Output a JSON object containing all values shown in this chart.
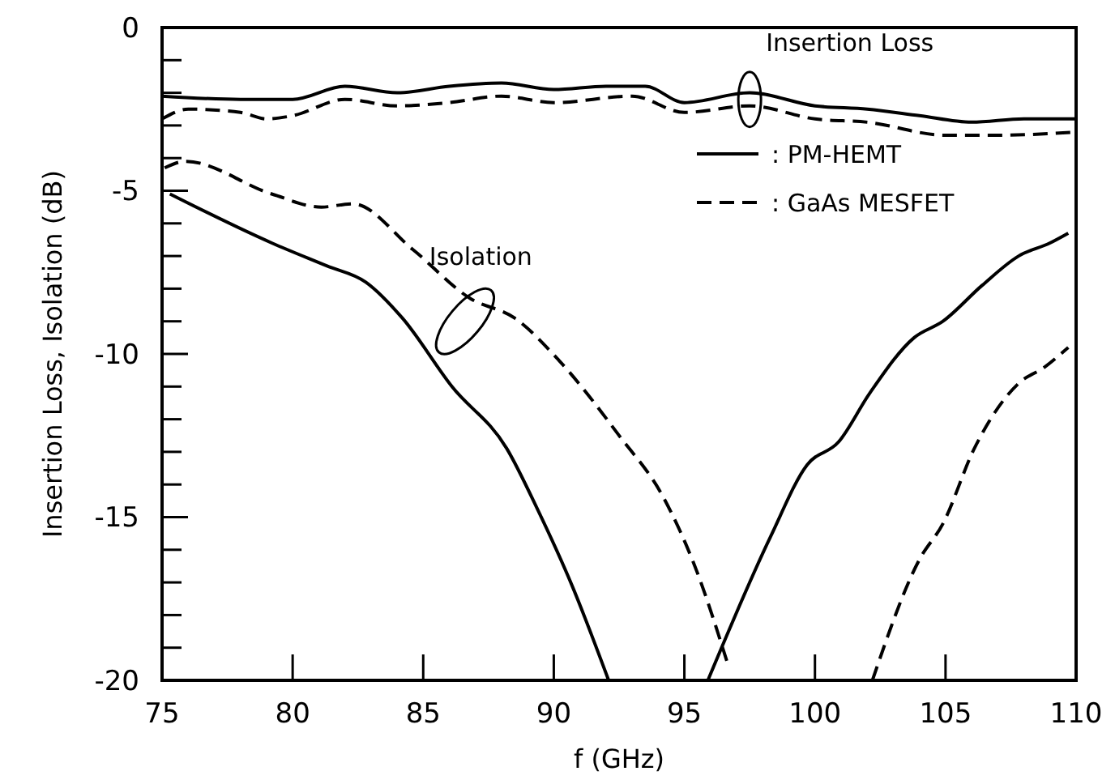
{
  "chart_data": {
    "type": "line",
    "xlabel": "f (GHz)",
    "ylabel": "Insertion Loss, Isolation (dB)",
    "xlim": [
      75,
      110
    ],
    "ylim": [
      -20,
      0
    ],
    "xticks": [
      75,
      80,
      85,
      90,
      95,
      100,
      105,
      110
    ],
    "yticks": [
      -20,
      {
        "value": -19,
        "label": null
      },
      {
        "value": -18,
        "label": null
      },
      {
        "value": -17,
        "label": null
      },
      {
        "value": -16,
        "label": null
      },
      -15,
      {
        "value": -14,
        "label": null
      },
      {
        "value": -13,
        "label": null
      },
      {
        "value": -12,
        "label": null
      },
      {
        "value": -11,
        "label": null
      },
      -10,
      {
        "value": -9,
        "label": null
      },
      {
        "value": -8,
        "label": null
      },
      {
        "value": -7,
        "label": null
      },
      {
        "value": -6,
        "label": null
      },
      -5,
      {
        "value": -4,
        "label": null
      },
      {
        "value": -3,
        "label": null
      },
      {
        "value": -2,
        "label": null
      },
      {
        "value": -1,
        "label": null
      },
      0
    ],
    "legend": "top right",
    "series": [
      {
        "name": ": PM-HEMT",
        "color": "#000000",
        "line_style": "solid",
        "x": [
          75,
          78,
          80,
          82,
          84,
          86,
          88,
          90,
          92,
          93.5,
          95,
          97.5,
          100,
          102,
          104,
          106,
          108,
          110
        ],
        "values": [
          -2.1,
          -2.2,
          -2.2,
          -1.8,
          -2.0,
          -1.8,
          -1.7,
          -1.9,
          -1.8,
          -1.8,
          -2.3,
          -2.0,
          -2.4,
          -2.5,
          -2.7,
          -2.9,
          -2.8,
          -2.8
        ]
      },
      {
        "name": ": GaAs MESFET",
        "color": "#000000",
        "line_style": "dashed",
        "x": [
          75,
          76,
          78,
          79,
          80,
          82,
          84,
          86,
          88,
          90,
          93,
          95,
          97.5,
          100,
          102,
          105,
          107,
          110
        ],
        "values": [
          -2.8,
          -2.5,
          -2.6,
          -2.8,
          -2.7,
          -2.2,
          -2.4,
          -2.3,
          -2.1,
          -2.3,
          -2.1,
          -2.6,
          -2.4,
          -2.8,
          -2.9,
          -3.3,
          -3.3,
          -3.2
        ]
      },
      {
        "color": "#000000",
        "line_style": "solid",
        "x": [
          75.3,
          79.2,
          81.3,
          82.8,
          84.2,
          86.1,
          88.2,
          89.4,
          90.7,
          92.1,
          94,
          95.9,
          98.3,
          99.7,
          100.9,
          102.1,
          103.8,
          104.9,
          106.4,
          107.8,
          109,
          109.7
        ],
        "values": [
          -5.1,
          -6.6,
          -7.3,
          -7.8,
          -8.9,
          -11.0,
          -12.9,
          -14.8,
          -17.1,
          -20,
          null,
          -20,
          -15.6,
          -13.4,
          -12.7,
          -11.2,
          -9.5,
          -9.0,
          -7.9,
          -7.0,
          -6.6,
          -6.3
        ]
      },
      {
        "color": "#000000",
        "line_style": "dashed",
        "x": [
          75.1,
          75.9,
          79.2,
          81.1,
          82.3,
          84.6,
          86.8,
          88.5,
          90.2,
          92.5,
          94.2,
          95.4,
          96.7,
          100,
          102.2,
          104,
          104.9,
          106.1,
          107.8,
          108.8,
          109.7
        ],
        "values": [
          -4.3,
          -4.1,
          -5.1,
          -5.5,
          -5.4,
          -6.8,
          -8.3,
          -8.9,
          -10.2,
          -12.5,
          -14.4,
          -16.5,
          -19.6,
          null,
          -20,
          -16.3,
          -15.2,
          -12.9,
          -10.9,
          -10.4,
          -9.8
        ]
      }
    ],
    "annotations": [
      {
        "text": "Insertion Loss",
        "x": 97.5,
        "y": -2.2
      },
      {
        "text": "Isolation",
        "x": 86.6,
        "y": -9
      }
    ]
  }
}
